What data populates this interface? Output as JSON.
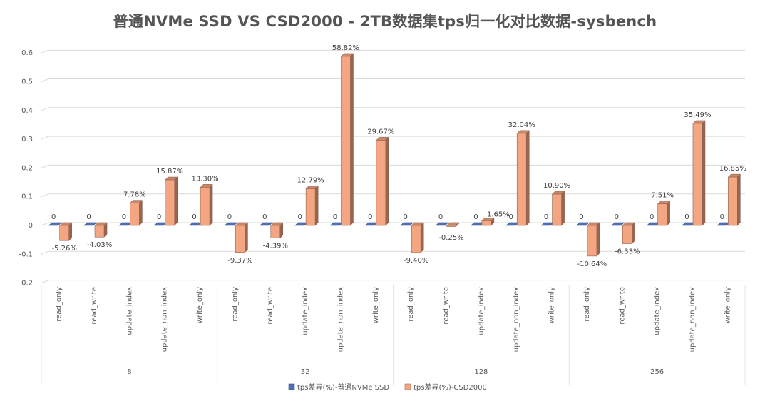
{
  "chart_data": {
    "type": "bar",
    "title": "普通NVMe SSD VS CSD2000 - 2TB数据集tps归一化对比数据-sysbench",
    "xlabel": "",
    "ylabel": "",
    "ylim": [
      -0.2,
      0.6
    ],
    "y_ticks": [
      -0.2,
      -0.1,
      0,
      0.1,
      0.2,
      0.3,
      0.4,
      0.5,
      0.6
    ],
    "y_tick_labels": [
      "-0.2",
      "-0.1",
      "0",
      "0.1",
      "0.2",
      "0.3",
      "0.4",
      "0.5",
      "0.6"
    ],
    "grid": true,
    "legend_position": "bottom",
    "groups": [
      "8",
      "32",
      "128",
      "256"
    ],
    "categories": [
      "read_only",
      "read_write",
      "update_index",
      "update_non_index",
      "write_only",
      "read_only",
      "read_write",
      "update_index",
      "update_non_index",
      "write_only",
      "read_only",
      "read_write",
      "update_index",
      "update_non_index",
      "write_only",
      "read_only",
      "read_write",
      "update_index",
      "update_non_index",
      "write_only"
    ],
    "series": [
      {
        "name": "tps差异(%)-普通NVMe SSD",
        "color": "#4e6fb5",
        "values": [
          0,
          0,
          0,
          0,
          0,
          0,
          0,
          0,
          0,
          0,
          0,
          0,
          0,
          0,
          0,
          0,
          0,
          0,
          0,
          0
        ],
        "labels": [
          "0",
          "0",
          "0",
          "0",
          "0",
          "0",
          "0",
          "0",
          "0",
          "0",
          "0",
          "0",
          "0",
          "0",
          "0",
          "0",
          "0",
          "0",
          "0",
          "0"
        ]
      },
      {
        "name": "tps差异(%)-CSD2000",
        "color": "#f4a582",
        "values": [
          -0.0526,
          -0.0403,
          0.0778,
          0.1587,
          0.133,
          -0.0937,
          -0.0439,
          0.1279,
          0.5882,
          0.2967,
          -0.094,
          -0.0025,
          0.0165,
          0.3204,
          0.109,
          -0.1064,
          -0.0633,
          0.0751,
          0.3549,
          0.1685
        ],
        "labels": [
          "-5.26%",
          "-4.03%",
          "7.78%",
          "15.87%",
          "13.30%",
          "-9.37%",
          "-4.39%",
          "12.79%",
          "58.82%",
          "29.67%",
          "-9.40%",
          "-0.25%",
          "1.65%",
          "32.04%",
          "10.90%",
          "-10.64%",
          "-6.33%",
          "7.51%",
          "35.49%",
          "16.85%"
        ]
      }
    ]
  }
}
